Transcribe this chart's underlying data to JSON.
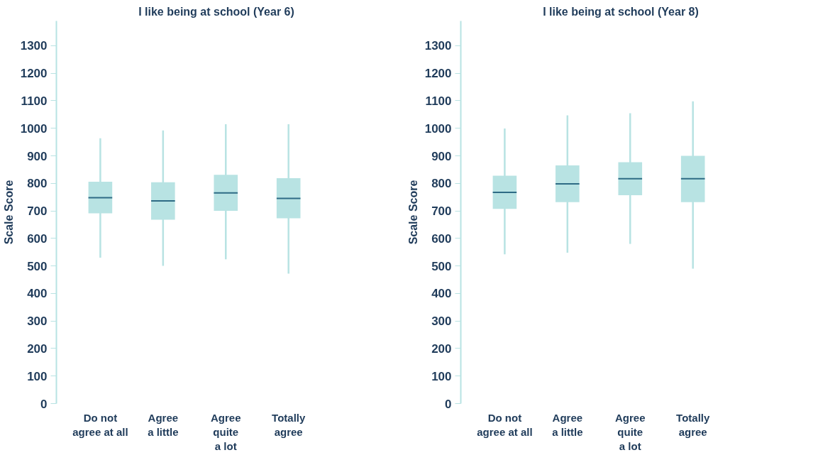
{
  "chart_data": [
    {
      "type": "box",
      "title": "I like being at school (Year 6)",
      "ylabel": "Scale Score",
      "categories": [
        "Do not\nagree at all",
        "Agree\na little",
        "Agree\nquite\na lot",
        "Totally\nagree"
      ],
      "color": "#b8e3e3",
      "grid": false,
      "ylim": [
        0,
        1390
      ],
      "yticks": [
        0,
        100,
        200,
        300,
        400,
        500,
        600,
        700,
        800,
        900,
        1000,
        1100,
        1200,
        1300
      ],
      "boxes": [
        {
          "low": 530,
          "q1": 691,
          "median": 748,
          "q3": 806,
          "high": 964
        },
        {
          "low": 500,
          "q1": 668,
          "median": 736,
          "q3": 804,
          "high": 992
        },
        {
          "low": 524,
          "q1": 700,
          "median": 765,
          "q3": 831,
          "high": 1015
        },
        {
          "low": 472,
          "q1": 673,
          "median": 745,
          "q3": 819,
          "high": 1015
        }
      ]
    },
    {
      "type": "box",
      "title": "I like being at school (Year 8)",
      "ylabel": "Scale Score",
      "categories": [
        "Do not\nagree at all",
        "Agree\na little",
        "Agree\nquite\na lot",
        "Totally\nagree"
      ],
      "color": "#b8e3e3",
      "grid": false,
      "ylim": [
        0,
        1390
      ],
      "yticks": [
        0,
        100,
        200,
        300,
        400,
        500,
        600,
        700,
        800,
        900,
        1000,
        1100,
        1200,
        1300
      ],
      "boxes": [
        {
          "low": 542,
          "q1": 707,
          "median": 767,
          "q3": 828,
          "high": 999
        },
        {
          "low": 548,
          "q1": 732,
          "median": 798,
          "q3": 865,
          "high": 1047
        },
        {
          "low": 580,
          "q1": 757,
          "median": 817,
          "q3": 877,
          "high": 1055
        },
        {
          "low": 490,
          "q1": 732,
          "median": 817,
          "q3": 900,
          "high": 1098
        }
      ]
    }
  ]
}
